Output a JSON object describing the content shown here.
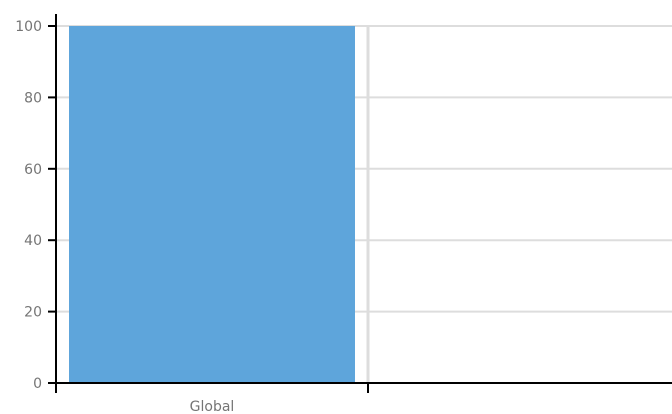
{
  "chart_data": {
    "type": "bar",
    "categories": [
      "Global",
      ""
    ],
    "values": [
      100,
      null
    ],
    "title": "",
    "xlabel": "",
    "ylabel": "",
    "ylim": [
      0,
      100
    ],
    "yticks": [
      0,
      20,
      40,
      60,
      80,
      100
    ],
    "grid": true,
    "legend": "none",
    "colors": {
      "bar": "#5ea5db",
      "grid": "#dddddd",
      "axis": "#000000",
      "tick_text": "#757575"
    }
  }
}
